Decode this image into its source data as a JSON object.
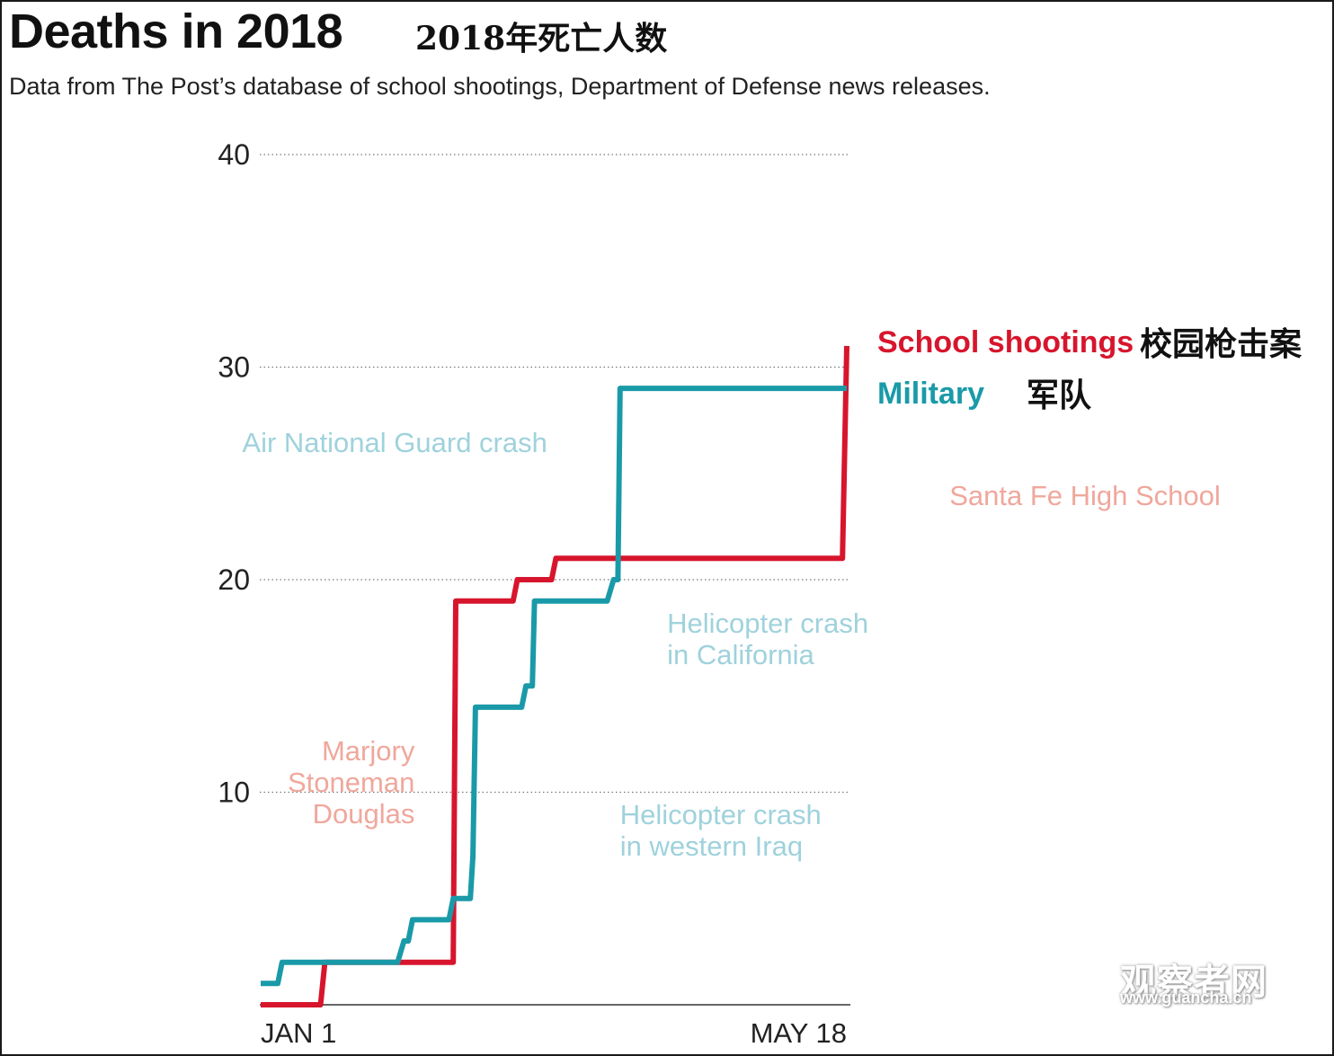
{
  "header": {
    "title": "Deaths in 2018",
    "title_cn": "2018年死亡人数",
    "subtitle": "Data from The Post’s database of school shootings, Department of Defense news releases."
  },
  "watermark": {
    "text": "观察者网",
    "url": "www.guancha.cn"
  },
  "colors": {
    "school": "#d7152c",
    "military": "#1a9aa8",
    "school_annot": "#f0a79c",
    "military_annot": "#9fd2dc"
  },
  "chart_data": {
    "type": "line",
    "title": "Deaths in 2018",
    "xlabel": "",
    "ylabel": "",
    "ylim": [
      0,
      40
    ],
    "xlim": [
      1,
      138
    ],
    "y_ticks": [
      10,
      20,
      30,
      40
    ],
    "x_ticks": [
      {
        "day": 1,
        "label": "JAN 1"
      },
      {
        "day": 138,
        "label": "MAY 18"
      }
    ],
    "grid": true,
    "series": [
      {
        "name": "School shootings",
        "name_cn": "校园枪击案",
        "color": "#d7152c",
        "points": [
          [
            1,
            0
          ],
          [
            15,
            0
          ],
          [
            16,
            2
          ],
          [
            30,
            2
          ],
          [
            46,
            2
          ],
          [
            46.6,
            19
          ],
          [
            60,
            19
          ],
          [
            61,
            20
          ],
          [
            69,
            20
          ],
          [
            70,
            21
          ],
          [
            137,
            21
          ],
          [
            138,
            31
          ]
        ]
      },
      {
        "name": "Military",
        "name_cn": "军队",
        "color": "#1a9aa8",
        "points": [
          [
            1,
            1
          ],
          [
            5,
            1
          ],
          [
            6,
            2
          ],
          [
            33,
            2
          ],
          [
            34.5,
            3
          ],
          [
            35.5,
            3
          ],
          [
            36.5,
            4
          ],
          [
            45,
            4
          ],
          [
            46,
            5
          ],
          [
            50,
            5
          ],
          [
            50.6,
            7
          ],
          [
            51.2,
            14
          ],
          [
            62,
            14
          ],
          [
            63,
            15
          ],
          [
            64.5,
            15
          ],
          [
            65,
            19
          ],
          [
            82,
            19
          ],
          [
            83.5,
            20
          ],
          [
            84.5,
            20
          ],
          [
            85,
            29
          ],
          [
            138,
            29
          ]
        ]
      }
    ],
    "annotations": [
      {
        "lines": [
          "Air National Guard crash"
        ],
        "series": "Military",
        "day": 68,
        "value": 26
      },
      {
        "lines": [
          "Santa Fe High School"
        ],
        "series": "School shootings",
        "day": 162,
        "value": 23.5
      },
      {
        "lines": [
          "Helicopter crash",
          "in California"
        ],
        "series": "Military",
        "day": 96,
        "value": 17.5
      },
      {
        "lines": [
          "Marjory",
          "Stoneman",
          "Douglas"
        ],
        "series": "School shootings",
        "day": 37,
        "value": 11.5
      },
      {
        "lines": [
          "Helicopter crash",
          "in western Iraq"
        ],
        "series": "Military",
        "day": 85,
        "value": 8.5
      }
    ]
  }
}
